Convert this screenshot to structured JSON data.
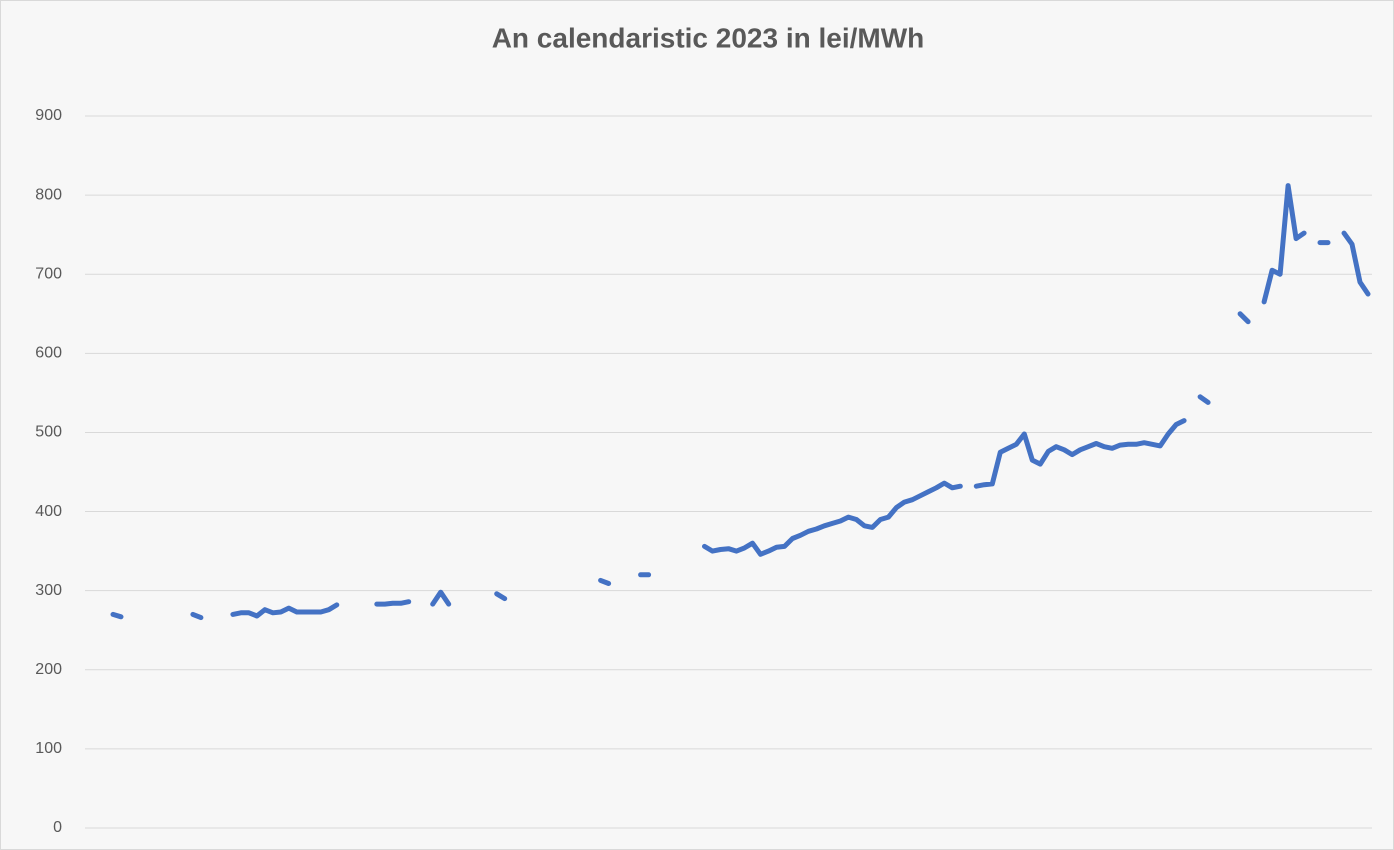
{
  "chart_data": {
    "type": "line",
    "title": "An calendaristic 2023 in lei/MWh",
    "categories": [
      null,
      null,
      null,
      null,
      null,
      null,
      null,
      null,
      null,
      null,
      null,
      null,
      null,
      null,
      null,
      null,
      null,
      null,
      null,
      null,
      null,
      null,
      null,
      null,
      null,
      null,
      null,
      null,
      null,
      null,
      null,
      null,
      null,
      null,
      null,
      null,
      null,
      null,
      null,
      null,
      null,
      null,
      null,
      null,
      null,
      null,
      null,
      null,
      null,
      null,
      null,
      null,
      null,
      null,
      null,
      null,
      null,
      null,
      null,
      null,
      null,
      null,
      null,
      null,
      null,
      null,
      null,
      null,
      null,
      null,
      null,
      null,
      null,
      null,
      null,
      null,
      null,
      null,
      null,
      null,
      null,
      null,
      null,
      null,
      null,
      null,
      null,
      null,
      null,
      null,
      null,
      null,
      null,
      null,
      null,
      null,
      null,
      null,
      null,
      null,
      null,
      null,
      null,
      null,
      null,
      null,
      null,
      null,
      null,
      null,
      null,
      null,
      null,
      null,
      null,
      null,
      null,
      null,
      null,
      null,
      null,
      null,
      null,
      null,
      null,
      null,
      null,
      null,
      null,
      null,
      null,
      null,
      null,
      null,
      null,
      null,
      null,
      null,
      null,
      null,
      null,
      null,
      null,
      null,
      null,
      null,
      null,
      null,
      null,
      null,
      null,
      null,
      null,
      null,
      null,
      null,
      null,
      null,
      null,
      null,
      null
    ],
    "series": [
      {
        "name": "2023",
        "color": "#4472c4",
        "values": [
          null,
          null,
          null,
          270,
          267,
          null,
          null,
          null,
          null,
          null,
          null,
          null,
          null,
          270,
          266,
          null,
          null,
          null,
          270,
          272,
          272,
          268,
          276,
          272,
          273,
          278,
          273,
          273,
          273,
          273,
          276,
          282,
          null,
          null,
          null,
          null,
          283,
          283,
          284,
          284,
          286,
          null,
          null,
          283,
          298,
          283,
          null,
          null,
          null,
          null,
          null,
          296,
          290,
          null,
          null,
          null,
          null,
          null,
          null,
          null,
          null,
          null,
          null,
          null,
          313,
          309,
          null,
          null,
          null,
          320,
          320,
          null,
          null,
          null,
          null,
          null,
          null,
          356,
          350,
          352,
          353,
          350,
          354,
          360,
          346,
          350,
          355,
          356,
          366,
          370,
          375,
          378,
          382,
          385,
          388,
          393,
          390,
          382,
          380,
          390,
          393,
          405,
          412,
          415,
          420,
          425,
          430,
          436,
          430,
          432,
          null,
          432,
          434,
          435,
          475,
          480,
          485,
          498,
          465,
          460,
          476,
          482,
          478,
          472,
          478,
          482,
          486,
          482,
          480,
          484,
          485,
          485,
          487,
          485,
          483,
          498,
          510,
          515,
          null,
          545,
          538,
          null,
          null,
          null,
          650,
          640,
          null,
          665,
          705,
          700,
          812,
          745,
          752,
          null,
          740,
          740,
          null,
          752,
          738,
          690,
          675
        ]
      }
    ],
    "ylim": [
      0,
      900
    ],
    "yticks": [
      0,
      100,
      200,
      300,
      400,
      500,
      600,
      700,
      800,
      900
    ],
    "grid": true
  }
}
